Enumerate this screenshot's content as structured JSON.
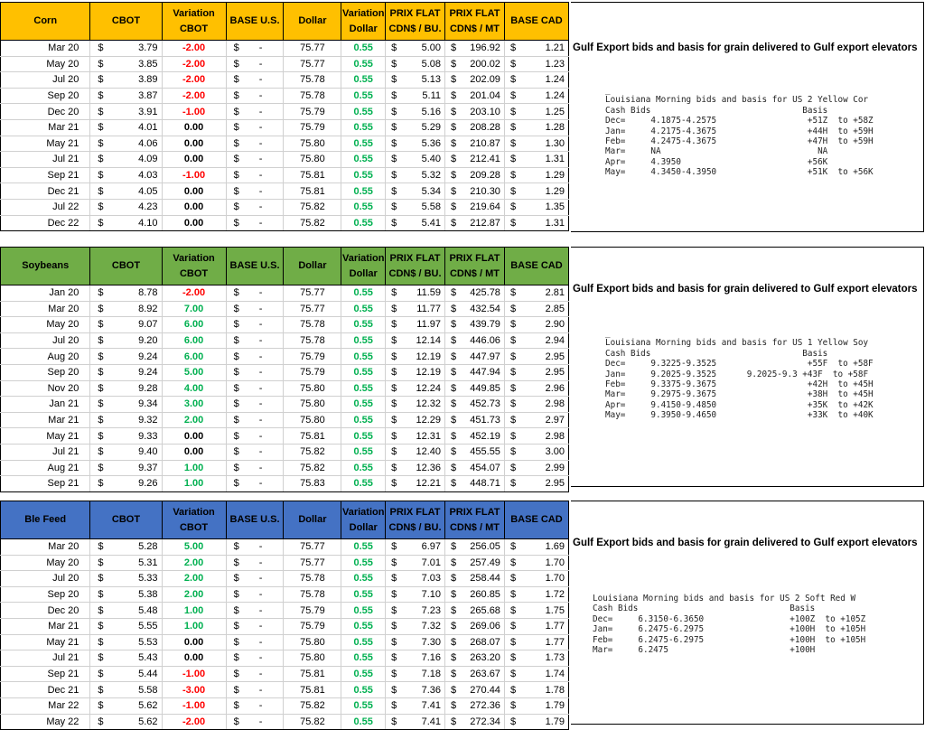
{
  "headers": {
    "cbot": "CBOT",
    "variation_cbot_1": "Variation",
    "variation_cbot_2": "CBOT",
    "base_us": "BASE U.S.",
    "dollar": "Dollar",
    "variation_dollar_1": "Variation",
    "variation_dollar_2": "Dollar",
    "prix_bu_1": "PRIX FLAT",
    "prix_bu_2": "CDN$ / BU.",
    "prix_mt_1": "PRIX FLAT",
    "prix_mt_2": "CDN$ / MT",
    "base_cad": "BASE CAD"
  },
  "sections": [
    {
      "name": "Corn",
      "rows": [
        [
          "Mar 20",
          "$",
          "3.79",
          "-2.00",
          "$",
          "-",
          "75.77",
          "0.55",
          "$",
          "5.00",
          "$",
          "196.92",
          "$",
          "1.21"
        ],
        [
          "May 20",
          "$",
          "3.85",
          "-2.00",
          "$",
          "-",
          "75.77",
          "0.55",
          "$",
          "5.08",
          "$",
          "200.02",
          "$",
          "1.23"
        ],
        [
          "Jul 20",
          "$",
          "3.89",
          "-2.00",
          "$",
          "-",
          "75.78",
          "0.55",
          "$",
          "5.13",
          "$",
          "202.09",
          "$",
          "1.24"
        ],
        [
          "Sep 20",
          "$",
          "3.87",
          "-2.00",
          "$",
          "-",
          "75.78",
          "0.55",
          "$",
          "5.11",
          "$",
          "201.04",
          "$",
          "1.24"
        ],
        [
          "Dec 20",
          "$",
          "3.91",
          "-1.00",
          "$",
          "-",
          "75.79",
          "0.55",
          "$",
          "5.16",
          "$",
          "203.10",
          "$",
          "1.25"
        ],
        [
          "Mar 21",
          "$",
          "4.01",
          "0.00",
          "$",
          "-",
          "75.79",
          "0.55",
          "$",
          "5.29",
          "$",
          "208.28",
          "$",
          "1.28"
        ],
        [
          "May 21",
          "$",
          "4.06",
          "0.00",
          "$",
          "-",
          "75.80",
          "0.55",
          "$",
          "5.36",
          "$",
          "210.87",
          "$",
          "1.30"
        ],
        [
          "Jul 21",
          "$",
          "4.09",
          "0.00",
          "$",
          "-",
          "75.80",
          "0.55",
          "$",
          "5.40",
          "$",
          "212.41",
          "$",
          "1.31"
        ],
        [
          "Sep 21",
          "$",
          "4.03",
          "-1.00",
          "$",
          "-",
          "75.81",
          "0.55",
          "$",
          "5.32",
          "$",
          "209.28",
          "$",
          "1.29"
        ],
        [
          "Dec 21",
          "$",
          "4.05",
          "0.00",
          "$",
          "-",
          "75.81",
          "0.55",
          "$",
          "5.34",
          "$",
          "210.30",
          "$",
          "1.29"
        ],
        [
          "Jul 22",
          "$",
          "4.23",
          "0.00",
          "$",
          "-",
          "75.82",
          "0.55",
          "$",
          "5.58",
          "$",
          "219.64",
          "$",
          "1.35"
        ],
        [
          "Dec 22",
          "$",
          "4.10",
          "0.00",
          "$",
          "-",
          "75.82",
          "0.55",
          "$",
          "5.41",
          "$",
          "212.87",
          "$",
          "1.31"
        ]
      ],
      "panel_title": "Gulf Export bids and basis for grain delivered to Gulf export elevators",
      "panel_lines": [
        "_",
        "Louisiana Morning bids and basis for US 2 Yellow Cor",
        "Cash Bids                              Basis",
        "Dec=     4.1875-4.2575                  +51Z  to +58Z",
        "Jan=     4.2175-4.3675                  +44H  to +59H",
        "Feb=     4.2475-4.3675                  +47H  to +59H",
        "Mar=     NA                               NA",
        "Apr=     4.3950                         +56K",
        "May=     4.3450-4.3950                  +51K  to +56K"
      ]
    },
    {
      "name": "Soybeans",
      "rows": [
        [
          "Jan 20",
          "$",
          "8.78",
          "-2.00",
          "$",
          "-",
          "75.77",
          "0.55",
          "$",
          "11.59",
          "$",
          "425.78",
          "$",
          "2.81"
        ],
        [
          "Mar 20",
          "$",
          "8.92",
          "7.00",
          "$",
          "-",
          "75.77",
          "0.55",
          "$",
          "11.77",
          "$",
          "432.54",
          "$",
          "2.85"
        ],
        [
          "May 20",
          "$",
          "9.07",
          "6.00",
          "$",
          "-",
          "75.78",
          "0.55",
          "$",
          "11.97",
          "$",
          "439.79",
          "$",
          "2.90"
        ],
        [
          "Jul 20",
          "$",
          "9.20",
          "6.00",
          "$",
          "-",
          "75.78",
          "0.55",
          "$",
          "12.14",
          "$",
          "446.06",
          "$",
          "2.94"
        ],
        [
          "Aug 20",
          "$",
          "9.24",
          "6.00",
          "$",
          "-",
          "75.79",
          "0.55",
          "$",
          "12.19",
          "$",
          "447.97",
          "$",
          "2.95"
        ],
        [
          "Sep 20",
          "$",
          "9.24",
          "5.00",
          "$",
          "-",
          "75.79",
          "0.55",
          "$",
          "12.19",
          "$",
          "447.94",
          "$",
          "2.95"
        ],
        [
          "Nov 20",
          "$",
          "9.28",
          "4.00",
          "$",
          "-",
          "75.80",
          "0.55",
          "$",
          "12.24",
          "$",
          "449.85",
          "$",
          "2.96"
        ],
        [
          "Jan 21",
          "$",
          "9.34",
          "3.00",
          "$",
          "-",
          "75.80",
          "0.55",
          "$",
          "12.32",
          "$",
          "452.73",
          "$",
          "2.98"
        ],
        [
          "Mar 21",
          "$",
          "9.32",
          "2.00",
          "$",
          "-",
          "75.80",
          "0.55",
          "$",
          "12.29",
          "$",
          "451.73",
          "$",
          "2.97"
        ],
        [
          "May 21",
          "$",
          "9.33",
          "0.00",
          "$",
          "-",
          "75.81",
          "0.55",
          "$",
          "12.31",
          "$",
          "452.19",
          "$",
          "2.98"
        ],
        [
          "Jul 21",
          "$",
          "9.40",
          "0.00",
          "$",
          "-",
          "75.82",
          "0.55",
          "$",
          "12.40",
          "$",
          "455.55",
          "$",
          "3.00"
        ],
        [
          "Aug 21",
          "$",
          "9.37",
          "1.00",
          "$",
          "-",
          "75.82",
          "0.55",
          "$",
          "12.36",
          "$",
          "454.07",
          "$",
          "2.99"
        ],
        [
          "Sep 21",
          "$",
          "9.26",
          "1.00",
          "$",
          "-",
          "75.83",
          "0.55",
          "$",
          "12.21",
          "$",
          "448.71",
          "$",
          "2.95"
        ]
      ],
      "panel_title": "Gulf Export bids and basis for grain delivered to Gulf export elevators",
      "panel_lines": [
        "_",
        "Louisiana Morning bids and basis for US 1 Yellow Soy",
        "Cash Bids                              Basis",
        "Dec=     9.3225-9.3525                  +55F  to +58F",
        "Jan=     9.2025-9.3525      9.2025-9.3 +43F  to +58F",
        "Feb=     9.3375-9.3675                  +42H  to +45H",
        "Mar=     9.2975-9.3675                  +38H  to +45H",
        "Apr=     9.4150-9.4850                  +35K  to +42K",
        "May=     9.3950-9.4650                  +33K  to +40K"
      ]
    },
    {
      "name": "Ble Feed",
      "rows": [
        [
          "Mar 20",
          "$",
          "5.28",
          "5.00",
          "$",
          "-",
          "75.77",
          "0.55",
          "$",
          "6.97",
          "$",
          "256.05",
          "$",
          "1.69"
        ],
        [
          "May 20",
          "$",
          "5.31",
          "2.00",
          "$",
          "-",
          "75.77",
          "0.55",
          "$",
          "7.01",
          "$",
          "257.49",
          "$",
          "1.70"
        ],
        [
          "Jul 20",
          "$",
          "5.33",
          "2.00",
          "$",
          "-",
          "75.78",
          "0.55",
          "$",
          "7.03",
          "$",
          "258.44",
          "$",
          "1.70"
        ],
        [
          "Sep 20",
          "$",
          "5.38",
          "2.00",
          "$",
          "-",
          "75.78",
          "0.55",
          "$",
          "7.10",
          "$",
          "260.85",
          "$",
          "1.72"
        ],
        [
          "Dec 20",
          "$",
          "5.48",
          "1.00",
          "$",
          "-",
          "75.79",
          "0.55",
          "$",
          "7.23",
          "$",
          "265.68",
          "$",
          "1.75"
        ],
        [
          "Mar 21",
          "$",
          "5.55",
          "1.00",
          "$",
          "-",
          "75.79",
          "0.55",
          "$",
          "7.32",
          "$",
          "269.06",
          "$",
          "1.77"
        ],
        [
          "May 21",
          "$",
          "5.53",
          "0.00",
          "$",
          "-",
          "75.80",
          "0.55",
          "$",
          "7.30",
          "$",
          "268.07",
          "$",
          "1.77"
        ],
        [
          "Jul 21",
          "$",
          "5.43",
          "0.00",
          "$",
          "-",
          "75.80",
          "0.55",
          "$",
          "7.16",
          "$",
          "263.20",
          "$",
          "1.73"
        ],
        [
          "Sep 21",
          "$",
          "5.44",
          "-1.00",
          "$",
          "-",
          "75.81",
          "0.55",
          "$",
          "7.18",
          "$",
          "263.67",
          "$",
          "1.74"
        ],
        [
          "Dec 21",
          "$",
          "5.58",
          "-3.00",
          "$",
          "-",
          "75.81",
          "0.55",
          "$",
          "7.36",
          "$",
          "270.44",
          "$",
          "1.78"
        ],
        [
          "Mar 22",
          "$",
          "5.62",
          "-1.00",
          "$",
          "-",
          "75.82",
          "0.55",
          "$",
          "7.41",
          "$",
          "272.36",
          "$",
          "1.79"
        ],
        [
          "May 22",
          "$",
          "5.62",
          "-2.00",
          "$",
          "-",
          "75.82",
          "0.55",
          "$",
          "7.41",
          "$",
          "272.34",
          "$",
          "1.79"
        ]
      ],
      "panel_title": "Gulf Export bids and basis for grain delivered to Gulf export elevators",
      "panel_lines": [
        "Louisiana Morning bids and basis for US 2 Soft Red W",
        "Cash Bids                              Basis",
        "Dec=     6.3150-6.3650                 +100Z  to +105Z",
        "Jan=     6.2475-6.2975                 +100H  to +105H",
        "Feb=     6.2475-6.2975                 +100H  to +105H",
        "Mar=     6.2475                        +100H"
      ]
    }
  ],
  "colors": {
    "corn_header": "#ffc000",
    "soy_header": "#70ad47",
    "ble_header": "#4472c4",
    "negative": "#ff0000",
    "positive": "#00b050"
  }
}
